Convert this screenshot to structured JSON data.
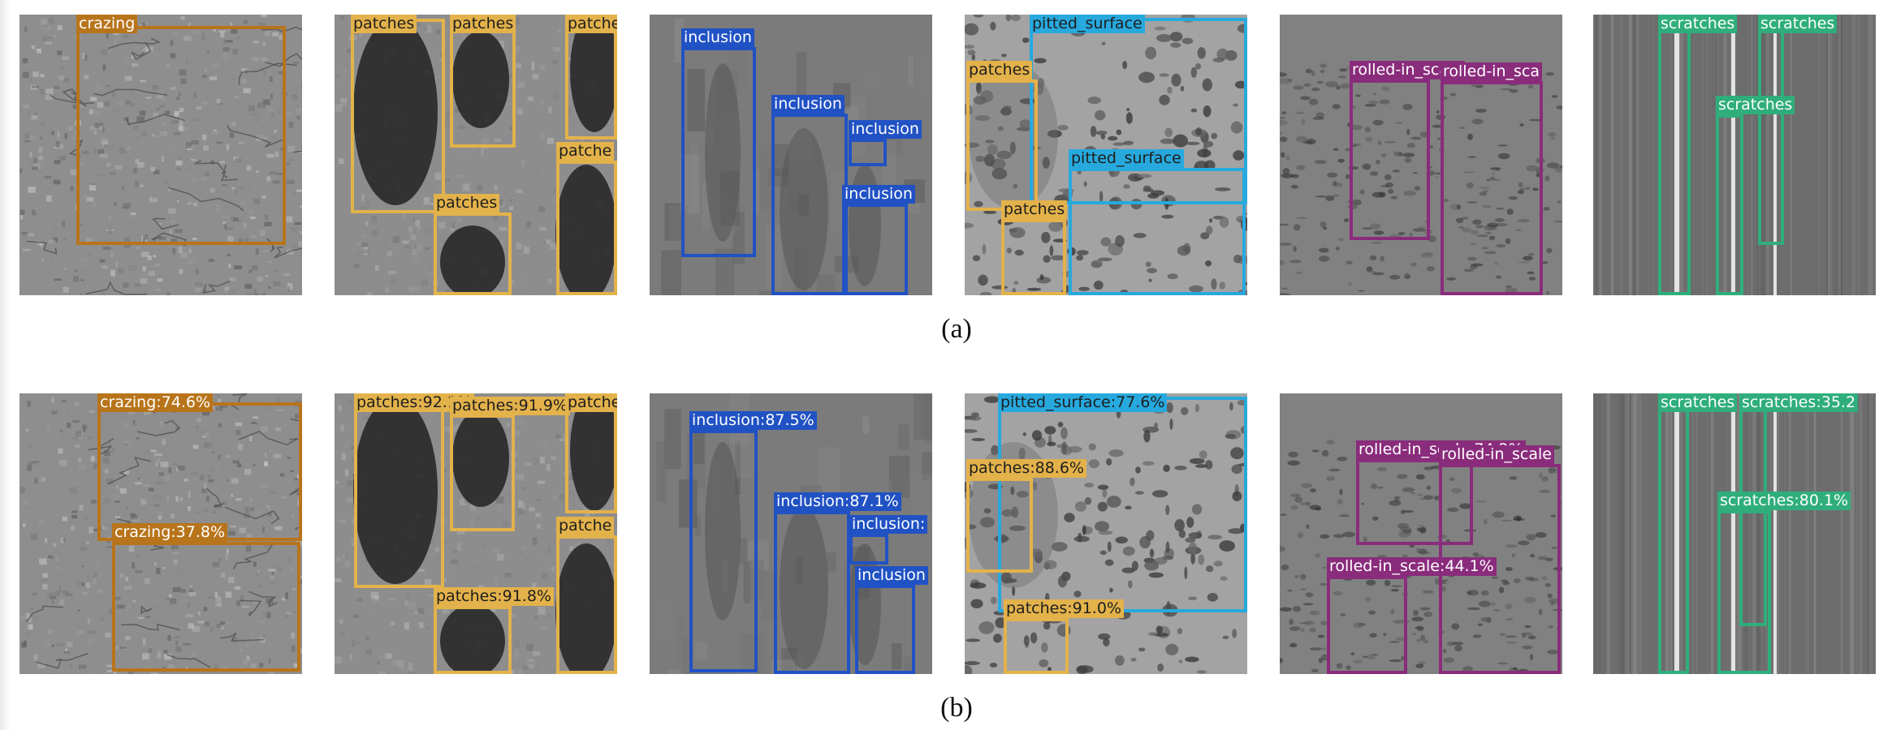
{
  "figure": {
    "rows": [
      {
        "caption": "(a)",
        "panels": [
          {
            "defect": "crazing",
            "detections": [
              {
                "label": "crazing",
                "class": "crazing"
              }
            ]
          },
          {
            "defect": "patches",
            "detections": [
              {
                "label": "patches",
                "class": "patches"
              },
              {
                "label": "patches",
                "class": "patches"
              },
              {
                "label": "patche",
                "class": "patches"
              },
              {
                "label": "patche",
                "class": "patches"
              },
              {
                "label": "patches",
                "class": "patches"
              }
            ]
          },
          {
            "defect": "inclusion",
            "detections": [
              {
                "label": "inclusion",
                "class": "inclusion"
              },
              {
                "label": "inclusion",
                "class": "inclusion"
              },
              {
                "label": "inclusion",
                "class": "inclusion"
              },
              {
                "label": "inclusion",
                "class": "inclusion"
              }
            ]
          },
          {
            "defect": "pitted_surface",
            "detections": [
              {
                "label": "pitted_surface",
                "class": "pitted_surface"
              },
              {
                "label": "patches",
                "class": "patches"
              },
              {
                "label": "pitted_surface",
                "class": "pitted_surface"
              },
              {
                "label": "patches",
                "class": "patches"
              }
            ]
          },
          {
            "defect": "rolled-in_scale",
            "detections": [
              {
                "label": "rolled-in_scale",
                "class": "rolled-in_scale"
              },
              {
                "label": "rolled-in_sca",
                "class": "rolled-in_scale"
              }
            ]
          },
          {
            "defect": "scratches",
            "detections": [
              {
                "label": "scratches",
                "class": "scratches"
              },
              {
                "label": "scratches",
                "class": "scratches"
              },
              {
                "label": "scratches",
                "class": "scratches"
              }
            ]
          }
        ]
      },
      {
        "caption": "(b)",
        "panels": [
          {
            "defect": "crazing",
            "detections": [
              {
                "label": "crazing:74.6%",
                "class": "crazing",
                "confidence": 74.6
              },
              {
                "label": "crazing:37.8%",
                "class": "crazing",
                "confidence": 37.8
              }
            ]
          },
          {
            "defect": "patches",
            "detections": [
              {
                "label": "patches:92.1%",
                "class": "patches",
                "confidence": 92.1
              },
              {
                "label": "patches:91.9%",
                "class": "patches",
                "confidence": 91.9
              },
              {
                "label": "patche",
                "class": "patches"
              },
              {
                "label": "patche",
                "class": "patches"
              },
              {
                "label": "patches:91.8%",
                "class": "patches",
                "confidence": 91.8
              }
            ]
          },
          {
            "defect": "inclusion",
            "detections": [
              {
                "label": "inclusion:87.5%",
                "class": "inclusion",
                "confidence": 87.5
              },
              {
                "label": "inclusion:87.1%",
                "class": "inclusion",
                "confidence": 87.1
              },
              {
                "label": "inclusion:",
                "class": "inclusion"
              },
              {
                "label": "inclusion",
                "class": "inclusion"
              }
            ]
          },
          {
            "defect": "pitted_surface",
            "detections": [
              {
                "label": "pitted_surface:77.6%",
                "class": "pitted_surface",
                "confidence": 77.6
              },
              {
                "label": "patches:88.6%",
                "class": "patches",
                "confidence": 88.6
              },
              {
                "label": "patches:91.0%",
                "class": "patches",
                "confidence": 91.0
              }
            ]
          },
          {
            "defect": "rolled-in_scale",
            "detections": [
              {
                "label": "rolled-in_scale:74.2%",
                "class": "rolled-in_scale",
                "confidence": 74.2
              },
              {
                "label": "rolled-in_scale",
                "class": "rolled-in_scale"
              },
              {
                "label": "rolled-in_scale:44.1%",
                "class": "rolled-in_scale",
                "confidence": 44.1
              }
            ]
          },
          {
            "defect": "scratches",
            "detections": [
              {
                "label": "scratches",
                "class": "scratches"
              },
              {
                "label": "scratches:35.2",
                "class": "scratches",
                "confidence": 35.2
              },
              {
                "label": "scratches:80.1%",
                "class": "scratches",
                "confidence": 80.1
              }
            ]
          }
        ]
      }
    ]
  },
  "class_colors": {
    "crazing": "#b8741a",
    "patches": "#e3b24b",
    "inclusion": "#2152c4",
    "pitted_surface": "#27a9de",
    "rolled-in_scale": "#8a2c7c",
    "scratches": "#2fae7c"
  },
  "label_text_colors": {
    "crazing": "#ffffff",
    "patches": "#1e1e1e",
    "inclusion": "#ffffff",
    "pitted_surface": "#1e1e1e",
    "rolled-in_scale": "#ffffff",
    "scratches": "#ffffff"
  }
}
